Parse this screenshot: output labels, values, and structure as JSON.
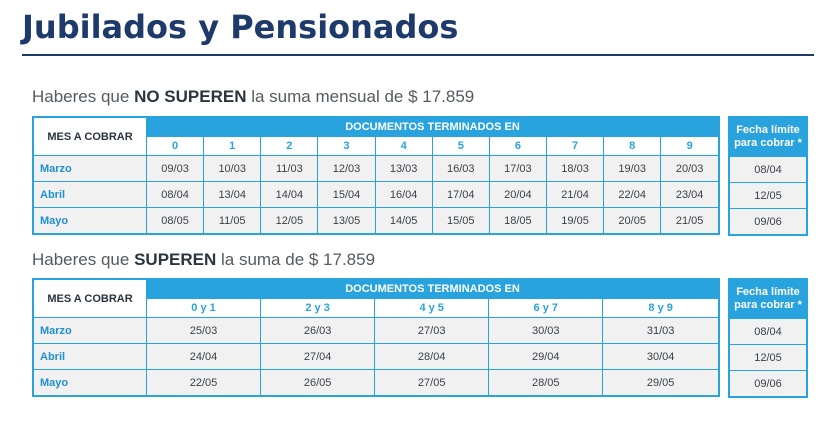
{
  "title": "Jubilados y Pensionados",
  "section1": {
    "caption_pre": "Haberes que ",
    "caption_bold": "NO SUPEREN",
    "caption_post": " la suma mensual de $ 17.859",
    "mes_label": "MES A COBRAR",
    "doc_header": "DOCUMENTOS TERMINADOS EN",
    "digits": [
      "0",
      "1",
      "2",
      "3",
      "4",
      "5",
      "6",
      "7",
      "8",
      "9"
    ],
    "rows": [
      {
        "month": "Marzo",
        "values": [
          "09/03",
          "10/03",
          "11/03",
          "12/03",
          "13/03",
          "16/03",
          "17/03",
          "18/03",
          "19/03",
          "20/03"
        ]
      },
      {
        "month": "Abril",
        "values": [
          "08/04",
          "13/04",
          "14/04",
          "15/04",
          "16/04",
          "17/04",
          "20/04",
          "21/04",
          "22/04",
          "23/04"
        ]
      },
      {
        "month": "Mayo",
        "values": [
          "08/05",
          "11/05",
          "12/05",
          "13/05",
          "14/05",
          "15/05",
          "18/05",
          "19/05",
          "20/05",
          "21/05"
        ]
      }
    ],
    "limit_header_line1": "Fecha límite",
    "limit_header_line2": "para cobrar *",
    "limits": [
      "08/04",
      "12/05",
      "09/06"
    ]
  },
  "section2": {
    "caption_pre": "Haberes que ",
    "caption_bold": "SUPEREN",
    "caption_post": " la suma de $ 17.859",
    "mes_label": "MES A COBRAR",
    "doc_header": "DOCUMENTOS TERMINADOS EN",
    "digits": [
      "0 y 1",
      "2 y 3",
      "4 y 5",
      "6 y 7",
      "8 y 9"
    ],
    "rows": [
      {
        "month": "Marzo",
        "values": [
          "25/03",
          "26/03",
          "27/03",
          "30/03",
          "31/03"
        ]
      },
      {
        "month": "Abril",
        "values": [
          "24/04",
          "27/04",
          "28/04",
          "29/04",
          "30/04"
        ]
      },
      {
        "month": "Mayo",
        "values": [
          "22/05",
          "26/05",
          "27/05",
          "28/05",
          "29/05"
        ]
      }
    ],
    "limit_header_line1": "Fecha límite",
    "limit_header_line2": "para cobrar *",
    "limits": [
      "08/04",
      "12/05",
      "09/06"
    ]
  },
  "colors": {
    "title": "#1d3a6b",
    "accent": "#29a3de",
    "cell_bg": "#f1f1f2",
    "month_text": "#1f8fd1"
  }
}
